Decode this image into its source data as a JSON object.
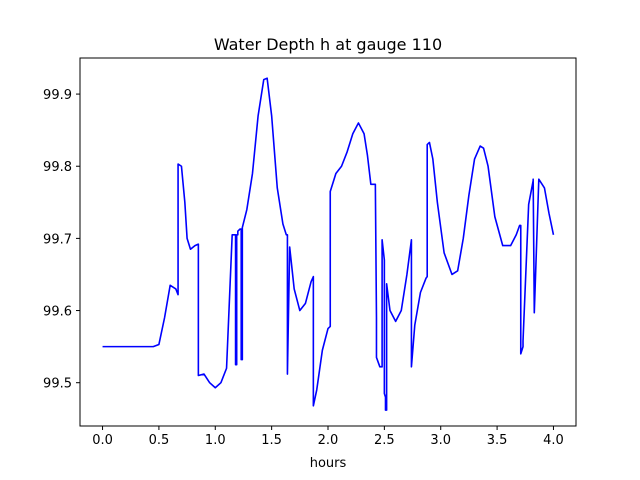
{
  "chart_data": {
    "type": "line",
    "title": "Water Depth h at gauge 110",
    "xlabel": "hours",
    "ylabel": "",
    "xlim": [
      -0.2,
      4.2
    ],
    "ylim": [
      99.44,
      99.95
    ],
    "xticks": [
      0.0,
      0.5,
      1.0,
      1.5,
      2.0,
      2.5,
      3.0,
      3.5,
      4.0
    ],
    "xtick_labels": [
      "0.0",
      "0.5",
      "1.0",
      "1.5",
      "2.0",
      "2.5",
      "3.0",
      "3.5",
      "4.0"
    ],
    "yticks": [
      99.5,
      99.6,
      99.7,
      99.8,
      99.9
    ],
    "ytick_labels": [
      "99.5",
      "99.6",
      "99.7",
      "99.8",
      "99.9"
    ],
    "grid": false,
    "series": [
      {
        "color": "#0000ff",
        "x": [
          0.0,
          0.3,
          0.45,
          0.5,
          0.55,
          0.6,
          0.65,
          0.67,
          0.67,
          0.7,
          0.73,
          0.75,
          0.78,
          0.82,
          0.85,
          0.85,
          0.9,
          0.95,
          1.0,
          1.05,
          1.1,
          1.15,
          1.18,
          1.18,
          1.19,
          1.19,
          1.2,
          1.2,
          1.22,
          1.23,
          1.23,
          1.24,
          1.24,
          1.28,
          1.33,
          1.38,
          1.43,
          1.46,
          1.5,
          1.55,
          1.6,
          1.63,
          1.64,
          1.64,
          1.66,
          1.7,
          1.75,
          1.8,
          1.85,
          1.87,
          1.87,
          1.9,
          1.95,
          2.0,
          2.02,
          2.02,
          2.07,
          2.12,
          2.17,
          2.22,
          2.27,
          2.32,
          2.35,
          2.38,
          2.42,
          2.43,
          2.43,
          2.46,
          2.48,
          2.48,
          2.5,
          2.5,
          2.51,
          2.51,
          2.52,
          2.52,
          2.55,
          2.6,
          2.65,
          2.7,
          2.74,
          2.74,
          2.77,
          2.82,
          2.87,
          2.88,
          2.88,
          2.9,
          2.93,
          2.97,
          3.03,
          3.1,
          3.15,
          3.2,
          3.25,
          3.3,
          3.35,
          3.38,
          3.42,
          3.48,
          3.55,
          3.62,
          3.67,
          3.7,
          3.71,
          3.71,
          3.73,
          3.73,
          3.78,
          3.82,
          3.82,
          3.83,
          3.83,
          3.87,
          3.92,
          3.96,
          4.0
        ],
        "y": [
          99.55,
          99.55,
          99.55,
          99.553,
          99.59,
          99.635,
          99.63,
          99.622,
          99.803,
          99.8,
          99.75,
          99.7,
          99.685,
          99.69,
          99.692,
          99.51,
          99.512,
          99.5,
          99.493,
          99.5,
          99.52,
          99.705,
          99.705,
          99.525,
          99.525,
          99.705,
          99.705,
          99.71,
          99.713,
          99.713,
          99.532,
          99.532,
          99.715,
          99.74,
          99.79,
          99.87,
          99.92,
          99.922,
          99.87,
          99.77,
          99.72,
          99.705,
          99.705,
          99.512,
          99.688,
          99.63,
          99.6,
          99.61,
          99.64,
          99.647,
          99.468,
          99.49,
          99.545,
          99.575,
          99.578,
          99.765,
          99.79,
          99.8,
          99.82,
          99.845,
          99.86,
          99.845,
          99.815,
          99.775,
          99.775,
          99.59,
          99.535,
          99.522,
          99.522,
          99.698,
          99.67,
          99.485,
          99.48,
          99.462,
          99.462,
          99.637,
          99.6,
          99.585,
          99.6,
          99.65,
          99.698,
          99.522,
          99.58,
          99.625,
          99.645,
          99.647,
          99.83,
          99.833,
          99.81,
          99.75,
          99.68,
          99.65,
          99.655,
          99.7,
          99.76,
          99.81,
          99.828,
          99.825,
          99.8,
          99.73,
          99.69,
          99.69,
          99.705,
          99.718,
          99.718,
          99.54,
          99.55,
          99.558,
          99.747,
          99.78,
          99.782,
          99.597,
          99.597,
          99.782,
          99.77,
          99.735,
          99.705
        ]
      }
    ]
  }
}
